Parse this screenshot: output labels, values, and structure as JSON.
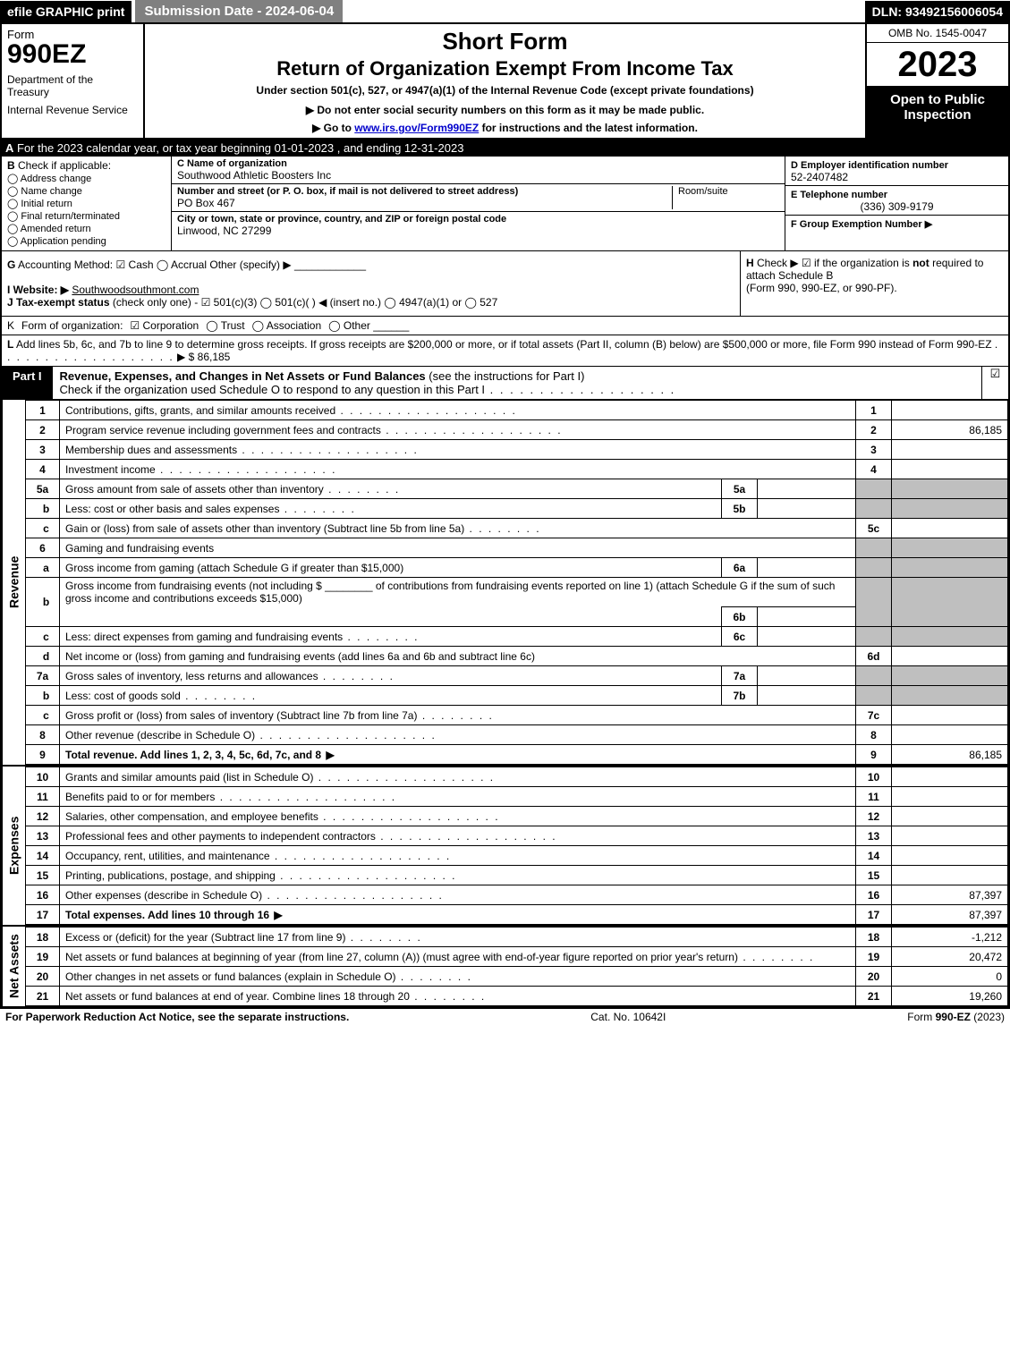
{
  "topbar": {
    "efile": "efile GRAPHIC",
    "print": "print",
    "submission": "Submission Date - 2024-06-04",
    "dln": "DLN: 93492156006054"
  },
  "header": {
    "form_word": "Form",
    "form_num": "990EZ",
    "dept": "Department of the Treasury",
    "irs": "Internal Revenue Service",
    "short_form": "Short Form",
    "return_title": "Return of Organization Exempt From Income Tax",
    "under": "Under section 501(c), 527, or 4947(a)(1) of the Internal Revenue Code (except private foundations)",
    "donot": "▶ Do not enter social security numbers on this form as it may be made public.",
    "goto_pre": "▶ Go to ",
    "goto_link": "www.irs.gov/Form990EZ",
    "goto_post": " for instructions and the latest information.",
    "omb": "OMB No. 1545-0047",
    "year": "2023",
    "open_to": "Open to Public Inspection"
  },
  "rowA": {
    "label": "A",
    "text": "For the 2023 calendar year, or tax year beginning 01-01-2023 , and ending 12-31-2023"
  },
  "colB": {
    "label": "B",
    "check_if": "Check if applicable:",
    "addr": "Address change",
    "name": "Name change",
    "initial": "Initial return",
    "final": "Final return/terminated",
    "amended": "Amended return",
    "pending": "Application pending"
  },
  "colC": {
    "c_label": "C Name of organization",
    "c_name": "Southwood Athletic Boosters Inc",
    "street_label": "Number and street (or P. O. box, if mail is not delivered to street address)",
    "street": "PO Box 467",
    "room_label": "Room/suite",
    "city_label": "City or town, state or province, country, and ZIP or foreign postal code",
    "city": "Linwood, NC  27299"
  },
  "colDEF": {
    "d_label": "D Employer identification number",
    "d_val": "52-2407482",
    "e_label": "E Telephone number",
    "e_val": "(336) 309-9179",
    "f_label": "F Group Exemption Number  ▶",
    "f_val": ""
  },
  "rowG": {
    "label": "G",
    "text": "Accounting Method:",
    "cash": "Cash",
    "accrual": "Accrual",
    "other": "Other (specify) ▶"
  },
  "rowH": {
    "label": "H",
    "text1": "Check ▶ ☑ if the organization is ",
    "not": "not",
    "text2": " required to attach Schedule B",
    "text3": "(Form 990, 990-EZ, or 990-PF)."
  },
  "rowI": {
    "label": "I Website: ▶",
    "val": "Southwoodsouthmont.com"
  },
  "rowJ": {
    "label": "J Tax-exempt status",
    "small": "(check only one) -",
    "opts": "☑ 501(c)(3)  ◯ 501(c)(  ) ◀ (insert no.)  ◯ 4947(a)(1) or  ◯ 527"
  },
  "rowK": {
    "label": "K",
    "text": "Form of organization:",
    "corp": "Corporation",
    "trust": "Trust",
    "assoc": "Association",
    "other": "Other"
  },
  "rowL": {
    "label": "L",
    "text": "Add lines 5b, 6c, and 7b to line 9 to determine gross receipts. If gross receipts are $200,000 or more, or if total assets (Part II, column (B) below) are $500,000 or more, file Form 990 instead of Form 990-EZ",
    "arrow": "▶ $",
    "val": "86,185"
  },
  "partI": {
    "tab": "Part I",
    "title_bold": "Revenue, Expenses, and Changes in Net Assets or Fund Balances",
    "title_rest": " (see the instructions for Part I)",
    "sub": "Check if the organization used Schedule O to respond to any question in this Part I",
    "check": "☑"
  },
  "lines": {
    "l1": {
      "n": "1",
      "d": "Contributions, gifts, grants, and similar amounts received",
      "r": "1",
      "v": ""
    },
    "l2": {
      "n": "2",
      "d": "Program service revenue including government fees and contracts",
      "r": "2",
      "v": "86,185"
    },
    "l3": {
      "n": "3",
      "d": "Membership dues and assessments",
      "r": "3",
      "v": ""
    },
    "l4": {
      "n": "4",
      "d": "Investment income",
      "r": "4",
      "v": ""
    },
    "l5a": {
      "n": "5a",
      "d": "Gross amount from sale of assets other than inventory",
      "m": "5a",
      "mv": ""
    },
    "l5b": {
      "n": "b",
      "d": "Less: cost or other basis and sales expenses",
      "m": "5b",
      "mv": ""
    },
    "l5c": {
      "n": "c",
      "d": "Gain or (loss) from sale of assets other than inventory (Subtract line 5b from line 5a)",
      "r": "5c",
      "v": ""
    },
    "l6": {
      "n": "6",
      "d": "Gaming and fundraising events"
    },
    "l6a": {
      "n": "a",
      "d": "Gross income from gaming (attach Schedule G if greater than $15,000)",
      "m": "6a",
      "mv": ""
    },
    "l6b": {
      "n": "b",
      "d1": "Gross income from fundraising events (not including $",
      "d2": "of contributions from fundraising events reported on line 1) (attach Schedule G if the sum of such gross income and contributions exceeds $15,000)",
      "m": "6b",
      "mv": ""
    },
    "l6c": {
      "n": "c",
      "d": "Less: direct expenses from gaming and fundraising events",
      "m": "6c",
      "mv": ""
    },
    "l6d": {
      "n": "d",
      "d": "Net income or (loss) from gaming and fundraising events (add lines 6a and 6b and subtract line 6c)",
      "r": "6d",
      "v": ""
    },
    "l7a": {
      "n": "7a",
      "d": "Gross sales of inventory, less returns and allowances",
      "m": "7a",
      "mv": ""
    },
    "l7b": {
      "n": "b",
      "d": "Less: cost of goods sold",
      "m": "7b",
      "mv": ""
    },
    "l7c": {
      "n": "c",
      "d": "Gross profit or (loss) from sales of inventory (Subtract line 7b from line 7a)",
      "r": "7c",
      "v": ""
    },
    "l8": {
      "n": "8",
      "d": "Other revenue (describe in Schedule O)",
      "r": "8",
      "v": ""
    },
    "l9": {
      "n": "9",
      "d": "Total revenue. Add lines 1, 2, 3, 4, 5c, 6d, 7c, and 8",
      "r": "9",
      "v": "86,185"
    },
    "l10": {
      "n": "10",
      "d": "Grants and similar amounts paid (list in Schedule O)",
      "r": "10",
      "v": ""
    },
    "l11": {
      "n": "11",
      "d": "Benefits paid to or for members",
      "r": "11",
      "v": ""
    },
    "l12": {
      "n": "12",
      "d": "Salaries, other compensation, and employee benefits",
      "r": "12",
      "v": ""
    },
    "l13": {
      "n": "13",
      "d": "Professional fees and other payments to independent contractors",
      "r": "13",
      "v": ""
    },
    "l14": {
      "n": "14",
      "d": "Occupancy, rent, utilities, and maintenance",
      "r": "14",
      "v": ""
    },
    "l15": {
      "n": "15",
      "d": "Printing, publications, postage, and shipping",
      "r": "15",
      "v": ""
    },
    "l16": {
      "n": "16",
      "d": "Other expenses (describe in Schedule O)",
      "r": "16",
      "v": "87,397"
    },
    "l17": {
      "n": "17",
      "d": "Total expenses. Add lines 10 through 16",
      "r": "17",
      "v": "87,397"
    },
    "l18": {
      "n": "18",
      "d": "Excess or (deficit) for the year (Subtract line 17 from line 9)",
      "r": "18",
      "v": "-1,212"
    },
    "l19": {
      "n": "19",
      "d": "Net assets or fund balances at beginning of year (from line 27, column (A)) (must agree with end-of-year figure reported on prior year's return)",
      "r": "19",
      "v": "20,472"
    },
    "l20": {
      "n": "20",
      "d": "Other changes in net assets or fund balances (explain in Schedule O)",
      "r": "20",
      "v": "0"
    },
    "l21": {
      "n": "21",
      "d": "Net assets or fund balances at end of year. Combine lines 18 through 20",
      "r": "21",
      "v": "19,260"
    }
  },
  "vlabels": {
    "revenue": "Revenue",
    "expenses": "Expenses",
    "netassets": "Net Assets"
  },
  "footer": {
    "left": "For Paperwork Reduction Act Notice, see the separate instructions.",
    "mid": "Cat. No. 10642I",
    "right_pre": "Form ",
    "right_bold": "990-EZ",
    "right_post": " (2023)"
  },
  "colors": {
    "black": "#000000",
    "white": "#ffffff",
    "gray_header": "#808080",
    "shaded": "#bfbfbf",
    "link": "#0000cc"
  }
}
